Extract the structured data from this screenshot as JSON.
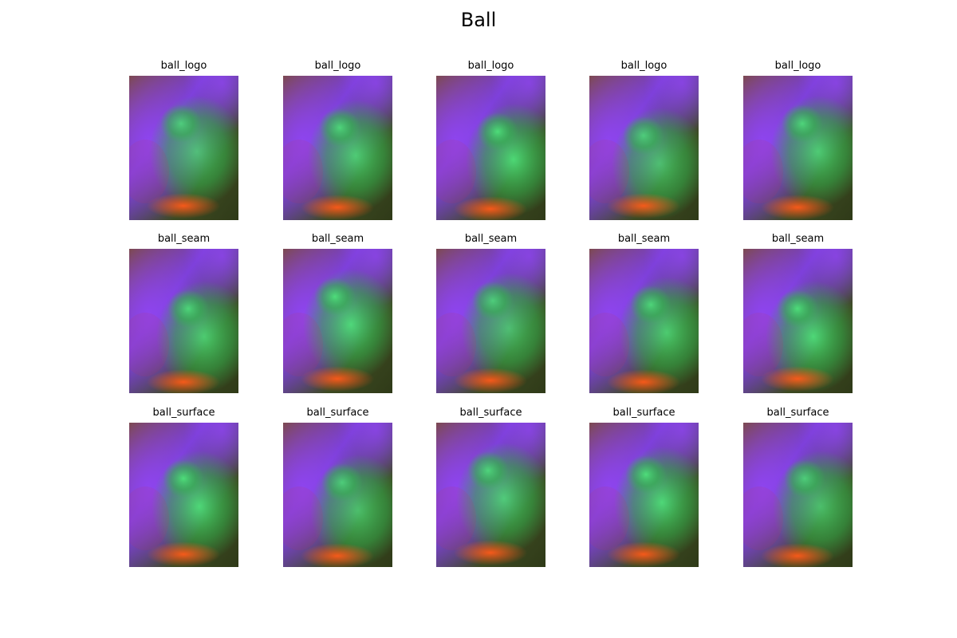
{
  "figure": {
    "title": "Ball"
  },
  "rows": [
    {
      "items": [
        {
          "label": "ball_logo"
        },
        {
          "label": "ball_logo"
        },
        {
          "label": "ball_logo"
        },
        {
          "label": "ball_logo"
        },
        {
          "label": "ball_logo"
        }
      ]
    },
    {
      "items": [
        {
          "label": "ball_seam"
        },
        {
          "label": "ball_seam"
        },
        {
          "label": "ball_seam"
        },
        {
          "label": "ball_seam"
        },
        {
          "label": "ball_seam"
        }
      ]
    },
    {
      "items": [
        {
          "label": "ball_surface"
        },
        {
          "label": "ball_surface"
        },
        {
          "label": "ball_surface"
        },
        {
          "label": "ball_surface"
        },
        {
          "label": "ball_surface"
        }
      ]
    }
  ],
  "palette": {
    "purple": "#7a3fd6",
    "violet": "#8f45f0",
    "green": "#33b34d",
    "bright_green": "#4ee67a",
    "orange": "#ff5a1a",
    "dark_olive": "#3d4a22",
    "brown": "#7a4a3a"
  }
}
